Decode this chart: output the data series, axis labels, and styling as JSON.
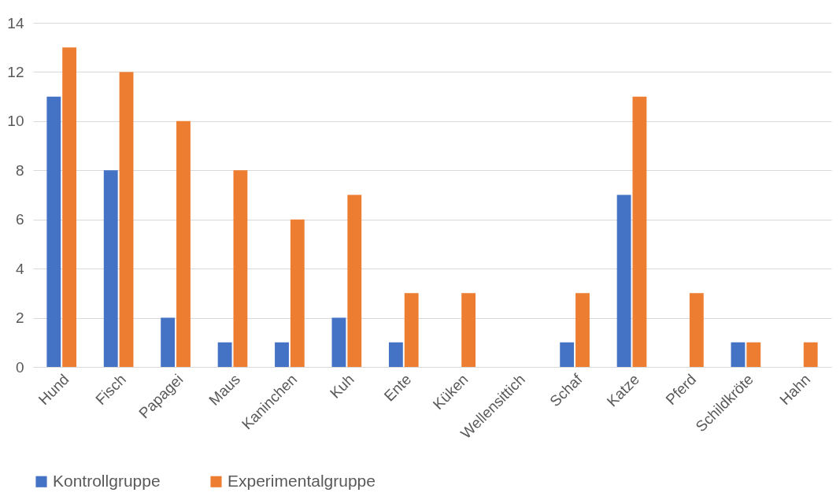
{
  "chart_data": {
    "type": "bar",
    "categories": [
      "Hund",
      "Fisch",
      "Papagei",
      "Maus",
      "Kaninchen",
      "Kuh",
      "Ente",
      "Küken",
      "Wellensittich",
      "Schaf",
      "Katze",
      "Pferd",
      "Schildkröte",
      "Hahn"
    ],
    "series": [
      {
        "name": "Kontrollgruppe",
        "color": "#4472c4",
        "values": [
          11,
          8,
          2,
          1,
          1,
          2,
          1,
          0,
          0,
          1,
          7,
          0,
          1,
          0
        ]
      },
      {
        "name": "Experimentalgruppe",
        "color": "#ed7d31",
        "values": [
          13,
          12,
          10,
          8,
          6,
          7,
          3,
          3,
          0,
          3,
          11,
          3,
          1,
          1
        ]
      }
    ],
    "ylim": [
      0,
      14
    ],
    "yticks": [
      0,
      2,
      4,
      6,
      8,
      10,
      12,
      14
    ],
    "grid": "y",
    "legend": "bottom"
  }
}
